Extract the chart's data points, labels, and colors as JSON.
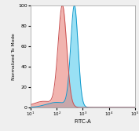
{
  "title": "",
  "xlabel": "FITC-A",
  "ylabel": "Normalized To Mode",
  "xlim_log": [
    10,
    100000
  ],
  "ylim": [
    0,
    100
  ],
  "yticks": [
    0,
    20,
    40,
    60,
    80,
    100
  ],
  "red_peak_log_mean": 2.22,
  "red_peak_log_std": 0.165,
  "blue_peak_log_mean": 2.68,
  "blue_peak_log_std": 0.14,
  "red_fill_color": "#E8827A",
  "red_line_color": "#C95050",
  "blue_fill_color": "#55CCEE",
  "blue_line_color": "#1199CC",
  "bg_color": "#FFFFFF",
  "fig_bg_color": "#EFEFEF"
}
